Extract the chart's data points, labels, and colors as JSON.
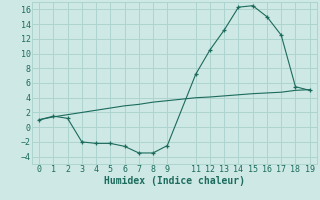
{
  "xlabel": "Humidex (Indice chaleur)",
  "background_color": "#cde8e5",
  "grid_color": "#add4cf",
  "line_color": "#1c6b5c",
  "x_humidex": [
    0,
    1,
    2,
    3,
    4,
    5,
    6,
    7,
    8,
    9,
    11,
    12,
    13,
    14,
    15,
    16,
    17,
    18,
    19
  ],
  "y_humidex": [
    1.0,
    1.5,
    1.2,
    -2.0,
    -2.2,
    -2.2,
    -2.6,
    -3.5,
    -3.5,
    -2.5,
    7.2,
    10.5,
    13.2,
    16.3,
    16.5,
    15.0,
    12.5,
    5.5,
    5.0
  ],
  "x_trend": [
    0,
    1,
    2,
    3,
    4,
    5,
    6,
    7,
    8,
    9,
    11,
    12,
    13,
    14,
    15,
    16,
    17,
    18,
    19
  ],
  "y_trend": [
    1.0,
    1.4,
    1.7,
    2.0,
    2.3,
    2.6,
    2.9,
    3.1,
    3.4,
    3.6,
    4.0,
    4.1,
    4.25,
    4.4,
    4.55,
    4.65,
    4.75,
    5.0,
    5.1
  ],
  "ylim": [
    -5,
    17
  ],
  "xlim": [
    -0.5,
    19.5
  ],
  "yticks": [
    -4,
    -2,
    0,
    2,
    4,
    6,
    8,
    10,
    12,
    14,
    16
  ],
  "xticks": [
    0,
    1,
    2,
    3,
    4,
    5,
    6,
    7,
    8,
    9,
    11,
    12,
    13,
    14,
    15,
    16,
    17,
    18,
    19
  ],
  "xlabel_fontsize": 7,
  "tick_fontsize": 6
}
